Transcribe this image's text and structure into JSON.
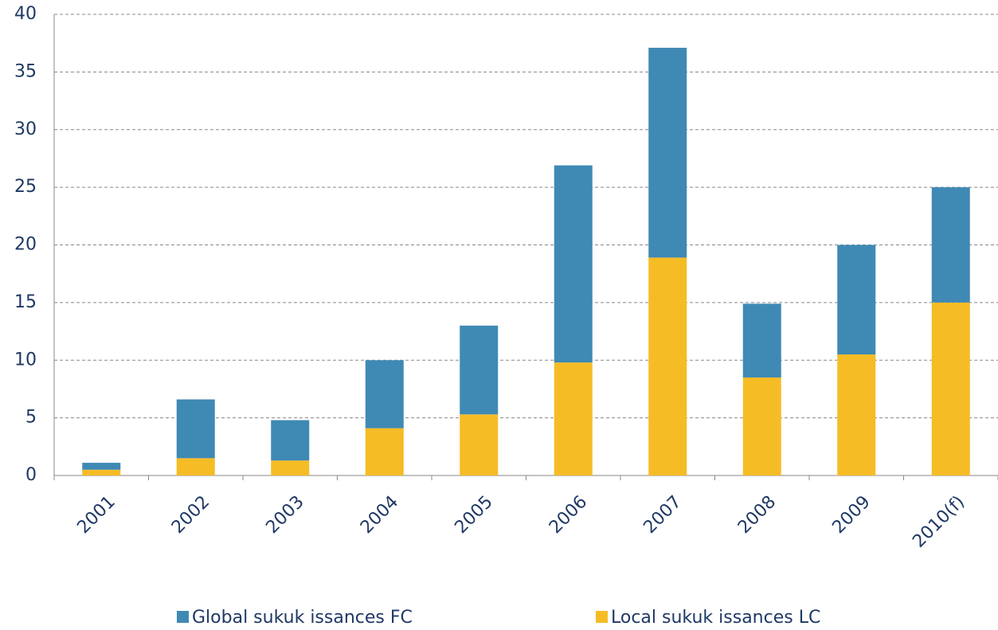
{
  "chart_data": {
    "type": "stacked_bar",
    "categories": [
      "2001",
      "2002",
      "2003",
      "2004",
      "2005",
      "2006",
      "2007",
      "2008",
      "2009",
      "2010(f)"
    ],
    "series": [
      {
        "name": "Global sukuk issances FC",
        "color": "#3f89b5",
        "values": [
          0.6,
          5.1,
          3.5,
          5.9,
          7.7,
          17.1,
          18.2,
          6.4,
          9.5,
          10.0
        ]
      },
      {
        "name": "Local sukuk issances LC",
        "color": "#f6bc25",
        "values": [
          0.5,
          1.5,
          1.3,
          4.1,
          5.3,
          9.8,
          18.9,
          8.5,
          10.5,
          15.0
        ]
      }
    ],
    "ylim": [
      0,
      40
    ],
    "yticks": [
      0,
      5,
      10,
      15,
      20,
      25,
      30,
      35,
      40
    ],
    "grid": true,
    "legend": "bottom"
  }
}
